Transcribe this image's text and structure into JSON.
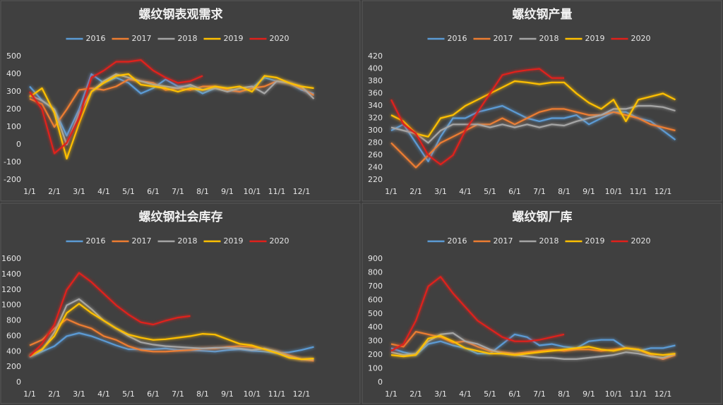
{
  "chart_data": [
    {
      "type": "line",
      "title": "螺纹钢表观需求",
      "categories": [
        "1/1",
        null,
        "2/1",
        null,
        "3/1",
        null,
        "4/1",
        null,
        "5/1",
        null,
        "6/1",
        null,
        "7/1",
        null,
        "8/1",
        null,
        "9/1",
        null,
        "10/1",
        null,
        "11/1",
        null,
        "12/1",
        null
      ],
      "ylim": [
        -200,
        500
      ],
      "yticks": [
        -200,
        -100,
        0,
        100,
        200,
        300,
        400,
        500
      ],
      "series": [
        {
          "name": "2016",
          "color": "#5b9bd5",
          "values": [
            330,
            250,
            200,
            50,
            200,
            400,
            350,
            380,
            350,
            290,
            320,
            370,
            330,
            330,
            290,
            320,
            320,
            300,
            320,
            380,
            360,
            350,
            310,
            290
          ]
        },
        {
          "name": "2017",
          "color": "#ed7d31",
          "values": [
            260,
            230,
            100,
            200,
            310,
            320,
            310,
            330,
            370,
            360,
            350,
            310,
            320,
            310,
            330,
            330,
            310,
            300,
            320,
            330,
            360,
            350,
            320,
            280
          ]
        },
        {
          "name": "2018",
          "color": "#a5a5a5",
          "values": [
            280,
            250,
            200,
            0,
            180,
            300,
            360,
            400,
            380,
            360,
            340,
            330,
            320,
            340,
            310,
            320,
            300,
            320,
            330,
            290,
            360,
            350,
            330,
            260
          ]
        },
        {
          "name": "2019",
          "color": "#ffc000",
          "values": [
            270,
            320,
            180,
            -80,
            120,
            300,
            350,
            390,
            400,
            340,
            330,
            320,
            300,
            320,
            310,
            330,
            320,
            330,
            300,
            390,
            380,
            350,
            330,
            320
          ]
        },
        {
          "name": "2020",
          "color": "#e0201b",
          "values": [
            300,
            200,
            -50,
            10,
            150,
            380,
            420,
            470,
            470,
            480,
            420,
            380,
            350,
            360,
            390,
            null,
            null,
            null,
            null,
            null,
            null,
            null,
            null,
            null
          ]
        }
      ]
    },
    {
      "type": "line",
      "title": "螺纹钢产量",
      "categories": [
        "1/1",
        null,
        "2/1",
        null,
        "3/1",
        null,
        "4/1",
        null,
        "5/1",
        null,
        "6/1",
        null,
        "7/1",
        null,
        "8/1",
        null,
        "9/1",
        null,
        "10/1",
        null,
        "11/1",
        null,
        "12/1",
        null
      ],
      "ylim": [
        220,
        420
      ],
      "yticks": [
        220,
        240,
        260,
        280,
        300,
        320,
        340,
        360,
        380,
        400,
        420
      ],
      "series": [
        {
          "name": "2016",
          "color": "#5b9bd5",
          "values": [
            300,
            310,
            280,
            250,
            290,
            320,
            320,
            330,
            335,
            340,
            330,
            320,
            315,
            320,
            320,
            325,
            310,
            320,
            330,
            330,
            320,
            315,
            300,
            285
          ]
        },
        {
          "name": "2017",
          "color": "#ed7d31",
          "values": [
            280,
            260,
            240,
            260,
            280,
            290,
            300,
            310,
            310,
            320,
            310,
            320,
            330,
            335,
            335,
            330,
            325,
            325,
            330,
            325,
            320,
            310,
            305,
            300
          ]
        },
        {
          "name": "2018",
          "color": "#a5a5a5",
          "values": [
            305,
            300,
            295,
            280,
            300,
            310,
            310,
            310,
            305,
            310,
            305,
            310,
            305,
            310,
            308,
            315,
            320,
            325,
            335,
            335,
            340,
            340,
            338,
            332
          ]
        },
        {
          "name": "2019",
          "color": "#ffc000",
          "values": [
            325,
            315,
            295,
            290,
            320,
            325,
            340,
            350,
            360,
            370,
            380,
            378,
            375,
            378,
            378,
            360,
            345,
            335,
            350,
            315,
            350,
            355,
            360,
            350
          ]
        },
        {
          "name": "2020",
          "color": "#e0201b",
          "values": [
            350,
            310,
            295,
            260,
            245,
            260,
            300,
            330,
            360,
            390,
            395,
            398,
            400,
            385,
            385,
            null,
            null,
            null,
            null,
            null,
            null,
            null,
            null,
            null
          ]
        }
      ]
    },
    {
      "type": "line",
      "title": "螺纹钢社会库存",
      "categories": [
        "1/1",
        null,
        "2/1",
        null,
        "3/1",
        null,
        "4/1",
        null,
        "5/1",
        null,
        "6/1",
        null,
        "7/1",
        null,
        "8/1",
        null,
        "9/1",
        null,
        "10/1",
        null,
        "11/1",
        null,
        "12/1",
        null
      ],
      "ylim": [
        0,
        1600
      ],
      "yticks": [
        0,
        200,
        400,
        600,
        800,
        1000,
        1200,
        1400,
        1600
      ],
      "series": [
        {
          "name": "2016",
          "color": "#5b9bd5",
          "values": [
            330,
            400,
            470,
            600,
            640,
            600,
            540,
            480,
            430,
            430,
            430,
            440,
            420,
            420,
            410,
            400,
            420,
            430,
            410,
            400,
            380,
            390,
            420,
            460
          ]
        },
        {
          "name": "2017",
          "color": "#ed7d31",
          "values": [
            480,
            550,
            700,
            820,
            750,
            700,
            600,
            550,
            470,
            420,
            400,
            400,
            410,
            420,
            440,
            440,
            460,
            470,
            460,
            430,
            400,
            350,
            300,
            280
          ]
        },
        {
          "name": "2018",
          "color": "#a5a5a5",
          "values": [
            340,
            420,
            650,
            1000,
            1080,
            950,
            800,
            700,
            600,
            520,
            490,
            470,
            460,
            450,
            440,
            450,
            450,
            440,
            420,
            440,
            400,
            330,
            300,
            300
          ]
        },
        {
          "name": "2019",
          "color": "#ffc000",
          "values": [
            340,
            430,
            600,
            900,
            1020,
            900,
            800,
            700,
            620,
            580,
            550,
            560,
            580,
            600,
            630,
            620,
            560,
            500,
            480,
            430,
            380,
            320,
            300,
            310
          ]
        },
        {
          "name": "2020",
          "color": "#e0201b",
          "values": [
            340,
            500,
            750,
            1200,
            1420,
            1300,
            1150,
            1000,
            880,
            780,
            750,
            800,
            840,
            860,
            null,
            null,
            null,
            null,
            null,
            null,
            null,
            null,
            null,
            null
          ]
        }
      ]
    },
    {
      "type": "line",
      "title": "螺纹钢厂库",
      "categories": [
        "1/1",
        null,
        "2/1",
        null,
        "3/1",
        null,
        "4/1",
        null,
        "5/1",
        null,
        "6/1",
        null,
        "7/1",
        null,
        "8/1",
        null,
        "9/1",
        null,
        "10/1",
        null,
        "11/1",
        null,
        "12/1",
        null
      ],
      "ylim": [
        0,
        900
      ],
      "yticks": [
        0,
        100,
        200,
        300,
        400,
        500,
        600,
        700,
        800,
        900
      ],
      "series": [
        {
          "name": "2016",
          "color": "#5b9bd5",
          "values": [
            250,
            220,
            200,
            280,
            300,
            270,
            250,
            210,
            210,
            280,
            350,
            330,
            270,
            280,
            260,
            250,
            300,
            310,
            310,
            250,
            230,
            250,
            250,
            270
          ]
        },
        {
          "name": "2017",
          "color": "#ed7d31",
          "values": [
            280,
            260,
            370,
            350,
            330,
            290,
            300,
            260,
            230,
            220,
            210,
            220,
            230,
            240,
            230,
            240,
            240,
            230,
            240,
            250,
            240,
            200,
            170,
            200
          ]
        },
        {
          "name": "2018",
          "color": "#a5a5a5",
          "values": [
            220,
            200,
            210,
            300,
            350,
            360,
            300,
            280,
            240,
            210,
            200,
            190,
            180,
            180,
            170,
            170,
            180,
            190,
            200,
            220,
            210,
            190,
            180,
            210
          ]
        },
        {
          "name": "2019",
          "color": "#ffc000",
          "values": [
            200,
            190,
            200,
            320,
            340,
            300,
            250,
            230,
            210,
            210,
            200,
            210,
            220,
            230,
            240,
            250,
            260,
            240,
            230,
            250,
            240,
            210,
            200,
            210
          ]
        },
        {
          "name": "2020",
          "color": "#e0201b",
          "values": [
            230,
            280,
            450,
            700,
            770,
            650,
            550,
            450,
            390,
            330,
            300,
            300,
            310,
            330,
            350,
            null,
            null,
            null,
            null,
            null,
            null,
            null,
            null,
            null
          ]
        }
      ]
    }
  ]
}
